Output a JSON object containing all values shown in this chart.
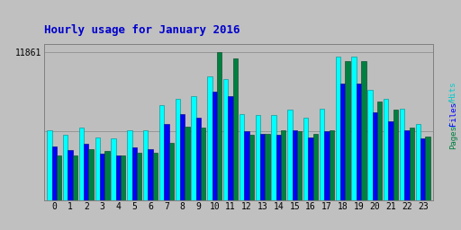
{
  "title": "Hourly usage for January 2016",
  "title_color": "#0000cc",
  "title_fontsize": 9,
  "background_color": "#c0c0c0",
  "plot_bg_color": "#bebebe",
  "hours": [
    0,
    1,
    2,
    3,
    4,
    5,
    6,
    7,
    8,
    9,
    10,
    11,
    12,
    13,
    14,
    15,
    16,
    17,
    18,
    19,
    20,
    21,
    22,
    23
  ],
  "hits": [
    5600,
    5200,
    5800,
    5000,
    4900,
    5600,
    5600,
    7600,
    8100,
    8300,
    9900,
    9700,
    6900,
    6800,
    6800,
    7200,
    6600,
    7300,
    11500,
    11500,
    8800,
    8100,
    7300,
    6100
  ],
  "files": [
    4300,
    4000,
    4500,
    3700,
    3600,
    4200,
    4100,
    6100,
    6900,
    6600,
    8700,
    8300,
    5500,
    5300,
    5200,
    5600,
    5000,
    5500,
    9300,
    9300,
    7000,
    6300,
    5600,
    4900
  ],
  "pages": [
    3600,
    3600,
    4100,
    3900,
    3600,
    3800,
    3800,
    4600,
    5900,
    5800,
    11861,
    11300,
    5200,
    5300,
    5600,
    5500,
    5300,
    5600,
    11100,
    11100,
    7900,
    7200,
    5800,
    5100
  ],
  "hits_color": "#00ffff",
  "files_color": "#0000ff",
  "pages_color": "#008040",
  "hits_edge": "#008888",
  "files_edge": "#000080",
  "pages_edge": "#004020",
  "max_value": 12500,
  "ytick_value": 11861,
  "hline1": 11861,
  "hline2": 5500,
  "bar_width": 0.3,
  "right_label_pages_color": "#008040",
  "right_label_files_color": "#0000ff",
  "right_label_hits_color": "#00cccc",
  "right_label_sep_color": "#00aaaa"
}
